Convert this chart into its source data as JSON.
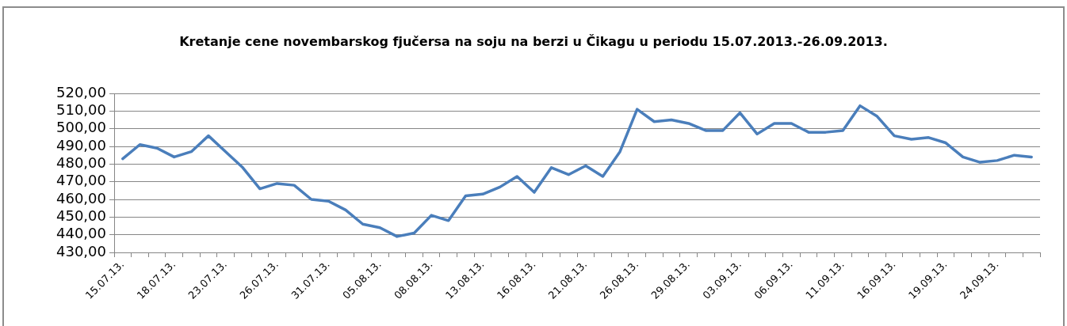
{
  "chart_data": {
    "type": "line",
    "title": "Kretanje cene novembarskog fjučersa na soju na berzi u Čikagu u periodu 15.07.2013.-26.09.2013.",
    "categories": [
      "15.07.13.",
      null,
      null,
      "18.07.13.",
      null,
      null,
      "23.07.13.",
      null,
      null,
      "26.07.13.",
      null,
      null,
      "31.07.13.",
      null,
      null,
      "05.08.13.",
      null,
      null,
      "08.08.13.",
      null,
      null,
      "13.08.13.",
      null,
      null,
      "16.08.13.",
      null,
      null,
      "21.08.13.",
      null,
      null,
      "26.08.13.",
      null,
      null,
      "29.08.13.",
      null,
      null,
      "03.09.13.",
      null,
      null,
      "06.09.13.",
      null,
      null,
      "11.09.13.",
      null,
      null,
      "16.09.13.",
      null,
      null,
      "19.09.13.",
      null,
      null,
      "24.09.13.",
      null,
      null
    ],
    "series": [
      {
        "color": "#4a7ebb",
        "values": [
          483,
          491,
          489,
          484,
          487,
          496,
          487,
          478,
          466,
          469,
          468,
          460,
          459,
          454,
          446,
          444,
          439,
          441,
          451,
          448,
          462,
          463,
          467,
          473,
          464,
          478,
          474,
          479,
          473,
          487,
          511,
          504,
          505,
          503,
          499,
          499,
          509,
          497,
          503,
          503,
          498,
          498,
          499,
          513,
          507,
          496,
          494,
          495,
          492,
          484,
          481,
          482,
          485,
          484
        ]
      }
    ],
    "ylim": [
      430,
      520
    ],
    "yticks": [
      {
        "value": 430,
        "label": "430,00"
      },
      {
        "value": 440,
        "label": "440,00"
      },
      {
        "value": 450,
        "label": "450,00"
      },
      {
        "value": 460,
        "label": "460,00"
      },
      {
        "value": 470,
        "label": "470,00"
      },
      {
        "value": 480,
        "label": "480,00"
      },
      {
        "value": 490,
        "label": "490,00"
      },
      {
        "value": 500,
        "label": "500,00"
      },
      {
        "value": 510,
        "label": "510,00"
      },
      {
        "value": 520,
        "label": "520,00"
      }
    ],
    "grid": "y",
    "legend": false,
    "marker": "none",
    "line_style": "solid"
  }
}
